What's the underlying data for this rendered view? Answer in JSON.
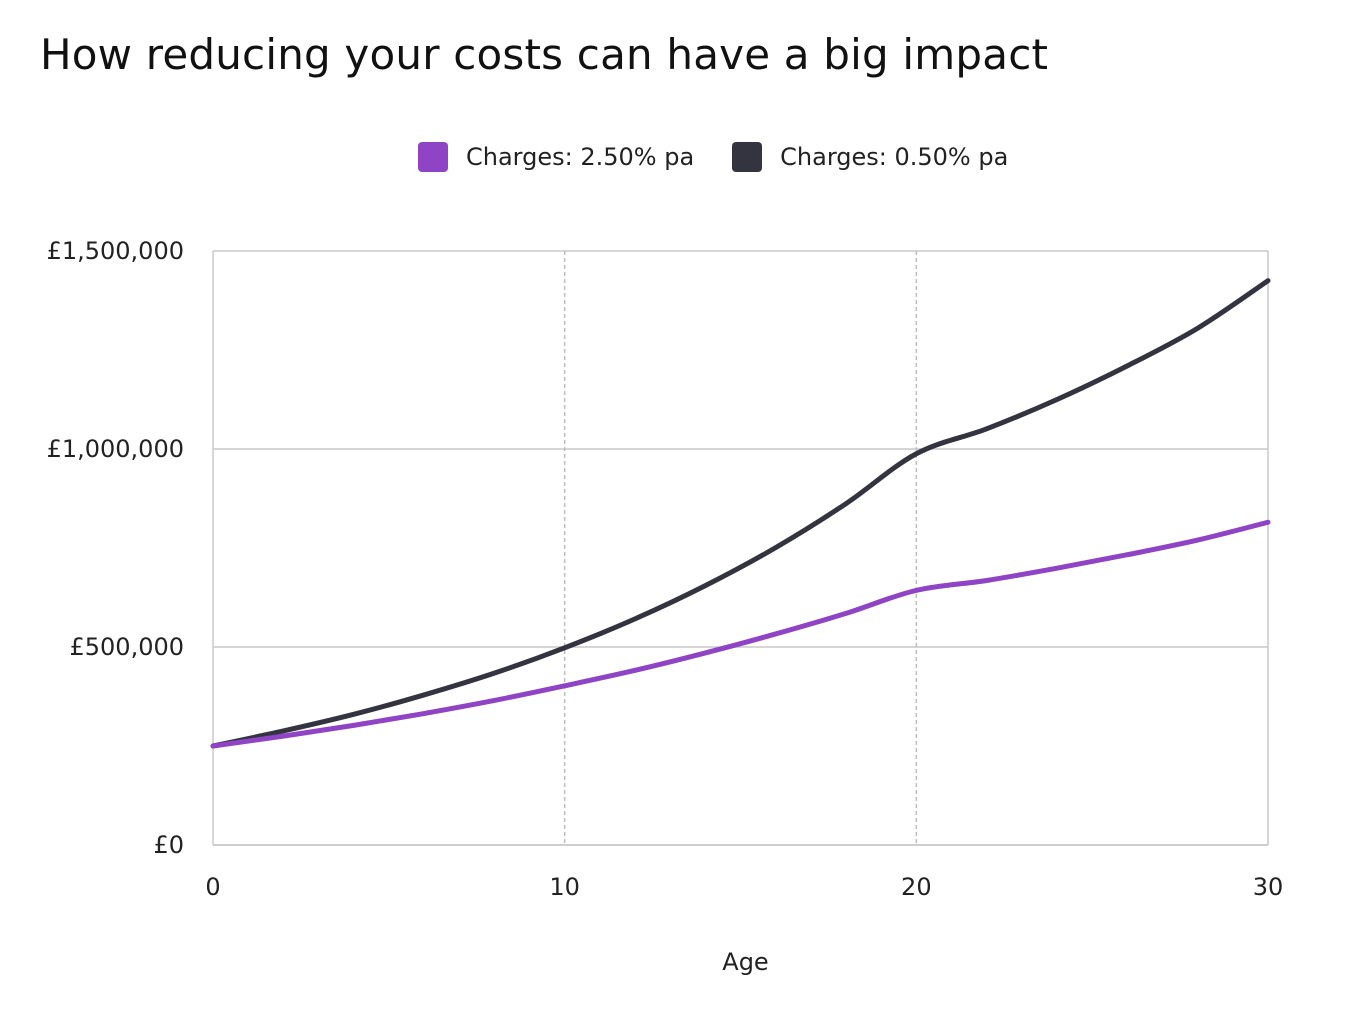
{
  "chart_data": {
    "type": "line",
    "title": "How reducing your costs can have a big impact",
    "xlabel": "Age",
    "ylabel": "",
    "xlim": [
      0,
      30
    ],
    "ylim": [
      0,
      1500000
    ],
    "x_ticks": [
      0,
      10,
      20,
      30
    ],
    "x_tick_labels": [
      "0",
      "10",
      "20",
      "30"
    ],
    "y_ticks": [
      0,
      500000,
      1000000,
      1500000
    ],
    "y_tick_labels": [
      "£0",
      "£500,000",
      "£1,000,000",
      "£1,500,000"
    ],
    "grid": true,
    "legend_position": "top-center",
    "x": [
      0,
      2,
      4,
      6,
      8,
      10,
      12,
      14,
      16,
      18,
      20,
      22,
      24,
      26,
      28,
      30
    ],
    "series": [
      {
        "name": "Charges: 2.50% pa",
        "color": "#8e44c4",
        "values": [
          250000,
          275000,
          302000,
          332000,
          365000,
          402000,
          441000,
          485000,
          533000,
          585000,
          643000,
          668000,
          699000,
          733000,
          770000,
          815000
        ]
      },
      {
        "name": "Charges: 0.50% pa",
        "color": "#33343f",
        "values": [
          250000,
          288000,
          330000,
          379000,
          434000,
          498000,
          571000,
          655000,
          751000,
          862000,
          988000,
          1051000,
          1125000,
          1210000,
          1305000,
          1425000
        ]
      }
    ]
  }
}
